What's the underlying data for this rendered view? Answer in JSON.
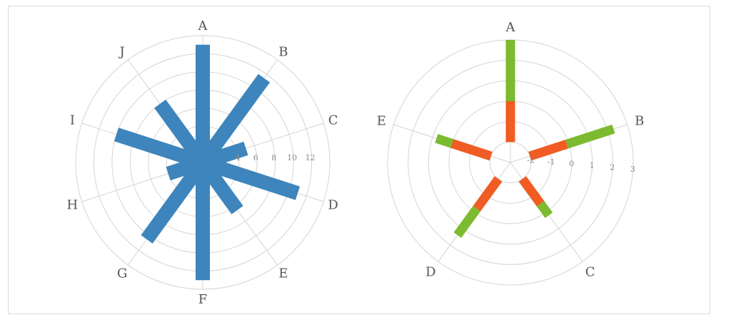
{
  "chart_data": [
    {
      "type": "polar-bar",
      "categories": [
        "A",
        "B",
        "C",
        "D",
        "E",
        "F",
        "G",
        "H",
        "I",
        "J"
      ],
      "values": [
        13,
        11.5,
        5,
        11,
        6.5,
        13,
        10.5,
        4,
        10,
        8
      ],
      "radial_ticks": [
        "4",
        "6",
        "8",
        "10",
        "12"
      ],
      "rlim": [
        0,
        14
      ],
      "grid": true,
      "color": "#3d85bc"
    },
    {
      "type": "polar-bar",
      "categories": [
        "A",
        "B",
        "C",
        "D",
        "E"
      ],
      "series": [
        {
          "values": [
            3,
            2.3,
            0.2,
            1.4,
            0.8
          ],
          "color": "#7cba2f"
        },
        {
          "values": [
            0,
            -0.1,
            -0.5,
            -0.2,
            0
          ],
          "color": "#f05c23"
        }
      ],
      "radial_ticks": [
        "-2",
        "-1",
        "0",
        "1",
        "2",
        "3"
      ],
      "rlim": [
        -3,
        3
      ],
      "grid": true
    }
  ]
}
